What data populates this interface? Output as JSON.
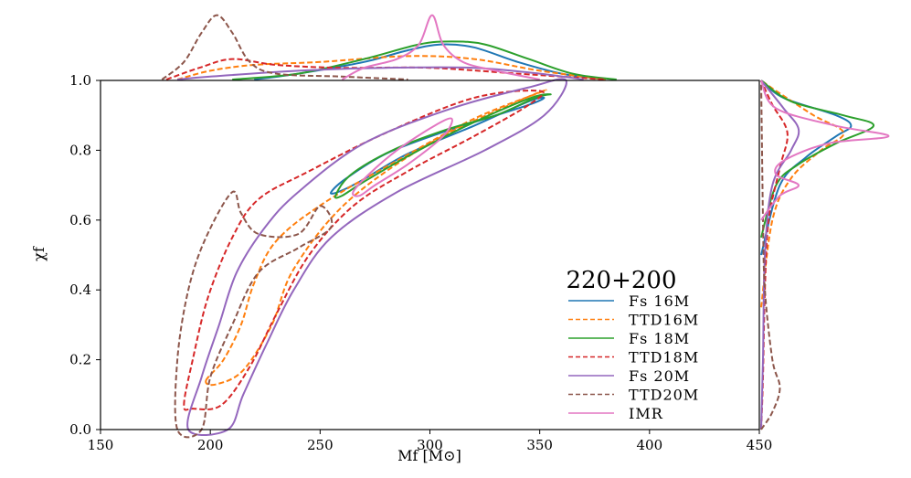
{
  "chart_data": {
    "type": "contour",
    "title": "",
    "xlabel": "M_f [M_⊙]",
    "xlabel_display": "Mf [M⊙]",
    "ylabel": "χ_f",
    "ylabel_display": "χf",
    "xlim": [
      150,
      450
    ],
    "ylim": [
      0.0,
      1.0
    ],
    "xticks": [
      "150",
      "200",
      "250",
      "300",
      "350",
      "400",
      "450"
    ],
    "yticks": [
      "0.0",
      "0.2",
      "0.4",
      "0.6",
      "0.8",
      "1.0"
    ],
    "grid": false,
    "legend": {
      "title": "220+200",
      "placement": "lower-right",
      "entries": [
        {
          "name": "Fs 16M",
          "color": "#1f77b4",
          "dashed": false
        },
        {
          "name": "TTD16M",
          "color": "#ff7f0e",
          "dashed": true
        },
        {
          "name": "Fs 18M",
          "color": "#2ca02c",
          "dashed": false
        },
        {
          "name": "TTD18M",
          "color": "#d62728",
          "dashed": true
        },
        {
          "name": "Fs 20M",
          "color": "#9467bd",
          "dashed": false
        },
        {
          "name": "TTD20M",
          "color": "#8c564b",
          "dashed": true
        },
        {
          "name": "IMR",
          "color": "#e377c2",
          "dashed": false
        }
      ]
    },
    "series": [
      {
        "name": "Fs 16M",
        "color": "#1f77b4",
        "dashed": false,
        "contour": [
          [
            255,
            0.68
          ],
          [
            262,
            0.72
          ],
          [
            280,
            0.79
          ],
          [
            305,
            0.85
          ],
          [
            325,
            0.89
          ],
          [
            345,
            0.93
          ],
          [
            352,
            0.95
          ],
          [
            345,
            0.94
          ],
          [
            320,
            0.87
          ],
          [
            290,
            0.79
          ],
          [
            268,
            0.71
          ],
          [
            258,
            0.68
          ]
        ],
        "marg_x": [
          [
            220,
            0.0
          ],
          [
            240,
            0.01
          ],
          [
            270,
            0.03
          ],
          [
            290,
            0.05
          ],
          [
            305,
            0.06
          ],
          [
            320,
            0.055
          ],
          [
            340,
            0.03
          ],
          [
            360,
            0.01
          ],
          [
            380,
            0.0
          ]
        ],
        "marg_y": [
          [
            0.5,
            0.0
          ],
          [
            0.7,
            0.05
          ],
          [
            0.78,
            0.12
          ],
          [
            0.84,
            0.2
          ],
          [
            0.87,
            0.24
          ],
          [
            0.9,
            0.2
          ],
          [
            0.95,
            0.06
          ],
          [
            1.0,
            0.0
          ]
        ]
      },
      {
        "name": "TTD16M",
        "color": "#ff7f0e",
        "dashed": true,
        "contour": [
          [
            198,
            0.14
          ],
          [
            206,
            0.2
          ],
          [
            214,
            0.3
          ],
          [
            220,
            0.42
          ],
          [
            230,
            0.54
          ],
          [
            252,
            0.65
          ],
          [
            285,
            0.77
          ],
          [
            320,
            0.89
          ],
          [
            352,
            0.97
          ],
          [
            340,
            0.94
          ],
          [
            300,
            0.82
          ],
          [
            262,
            0.65
          ],
          [
            238,
            0.46
          ],
          [
            228,
            0.3
          ],
          [
            215,
            0.17
          ],
          [
            203,
            0.13
          ]
        ],
        "marg_x": [
          [
            185,
            0.0
          ],
          [
            200,
            0.015
          ],
          [
            220,
            0.025
          ],
          [
            250,
            0.03
          ],
          [
            290,
            0.04
          ],
          [
            320,
            0.035
          ],
          [
            350,
            0.015
          ],
          [
            380,
            0.0
          ]
        ],
        "marg_y": [
          [
            0.35,
            0.0
          ],
          [
            0.6,
            0.03
          ],
          [
            0.72,
            0.08
          ],
          [
            0.8,
            0.16
          ],
          [
            0.85,
            0.22
          ],
          [
            0.9,
            0.14
          ],
          [
            0.97,
            0.04
          ],
          [
            1.0,
            0.0
          ]
        ]
      },
      {
        "name": "Fs 18M",
        "color": "#2ca02c",
        "dashed": false,
        "contour": [
          [
            257,
            0.67
          ],
          [
            264,
            0.73
          ],
          [
            283,
            0.8
          ],
          [
            308,
            0.86
          ],
          [
            330,
            0.9
          ],
          [
            348,
            0.95
          ],
          [
            355,
            0.96
          ],
          [
            346,
            0.95
          ],
          [
            320,
            0.88
          ],
          [
            292,
            0.79
          ],
          [
            270,
            0.71
          ],
          [
            260,
            0.67
          ]
        ],
        "marg_x": [
          [
            210,
            0.0
          ],
          [
            240,
            0.01
          ],
          [
            270,
            0.035
          ],
          [
            295,
            0.06
          ],
          [
            310,
            0.065
          ],
          [
            325,
            0.06
          ],
          [
            345,
            0.035
          ],
          [
            365,
            0.01
          ],
          [
            385,
            0.0
          ]
        ],
        "marg_y": [
          [
            0.55,
            0.0
          ],
          [
            0.7,
            0.04
          ],
          [
            0.76,
            0.1
          ],
          [
            0.82,
            0.2
          ],
          [
            0.87,
            0.3
          ],
          [
            0.9,
            0.22
          ],
          [
            0.94,
            0.08
          ],
          [
            1.0,
            0.0
          ]
        ]
      },
      {
        "name": "TTD18M",
        "color": "#d62728",
        "dashed": true,
        "contour": [
          [
            188,
            0.07
          ],
          [
            192,
            0.2
          ],
          [
            199,
            0.38
          ],
          [
            210,
            0.55
          ],
          [
            222,
            0.66
          ],
          [
            245,
            0.74
          ],
          [
            280,
            0.85
          ],
          [
            320,
            0.95
          ],
          [
            350,
            0.97
          ],
          [
            345,
            0.93
          ],
          [
            320,
            0.84
          ],
          [
            290,
            0.74
          ],
          [
            265,
            0.64
          ],
          [
            245,
            0.5
          ],
          [
            230,
            0.33
          ],
          [
            218,
            0.18
          ],
          [
            205,
            0.07
          ],
          [
            192,
            0.06
          ]
        ],
        "marg_x": [
          [
            180,
            0.0
          ],
          [
            195,
            0.02
          ],
          [
            210,
            0.035
          ],
          [
            230,
            0.025
          ],
          [
            260,
            0.02
          ],
          [
            300,
            0.02
          ],
          [
            340,
            0.01
          ],
          [
            380,
            0.0
          ]
        ],
        "marg_y": [
          [
            0.0,
            0.0
          ],
          [
            0.15,
            0.005
          ],
          [
            0.4,
            0.01
          ],
          [
            0.6,
            0.02
          ],
          [
            0.75,
            0.05
          ],
          [
            0.85,
            0.07
          ],
          [
            0.93,
            0.03
          ],
          [
            1.0,
            0.0
          ]
        ]
      },
      {
        "name": "Fs 20M",
        "color": "#9467bd",
        "dashed": false,
        "contour": [
          [
            190,
            0.0
          ],
          [
            196,
            0.15
          ],
          [
            204,
            0.3
          ],
          [
            212,
            0.45
          ],
          [
            225,
            0.58
          ],
          [
            240,
            0.68
          ],
          [
            270,
            0.82
          ],
          [
            310,
            0.92
          ],
          [
            345,
            0.98
          ],
          [
            362,
            1.0
          ],
          [
            352,
            0.9
          ],
          [
            325,
            0.8
          ],
          [
            285,
            0.68
          ],
          [
            255,
            0.55
          ],
          [
            238,
            0.4
          ],
          [
            226,
            0.25
          ],
          [
            215,
            0.1
          ],
          [
            208,
            0.0
          ]
        ],
        "marg_x": [
          [
            185,
            0.0
          ],
          [
            200,
            0.005
          ],
          [
            240,
            0.015
          ],
          [
            280,
            0.02
          ],
          [
            320,
            0.02
          ],
          [
            350,
            0.01
          ],
          [
            370,
            0.0
          ]
        ],
        "marg_y": [
          [
            0.0,
            0.0
          ],
          [
            0.2,
            0.005
          ],
          [
            0.5,
            0.01
          ],
          [
            0.7,
            0.03
          ],
          [
            0.8,
            0.08
          ],
          [
            0.86,
            0.1
          ],
          [
            0.92,
            0.06
          ],
          [
            1.0,
            0.0
          ]
        ]
      },
      {
        "name": "TTD20M",
        "color": "#8c564b",
        "dashed": true,
        "contour": [
          [
            185,
            0.0
          ],
          [
            185,
            0.2
          ],
          [
            190,
            0.4
          ],
          [
            198,
            0.55
          ],
          [
            210,
            0.68
          ],
          [
            214,
            0.62
          ],
          [
            222,
            0.56
          ],
          [
            240,
            0.56
          ],
          [
            250,
            0.64
          ],
          [
            255,
            0.58
          ],
          [
            240,
            0.52
          ],
          [
            222,
            0.45
          ],
          [
            210,
            0.3
          ],
          [
            200,
            0.15
          ],
          [
            196,
            0.0
          ]
        ],
        "marg_x": [
          [
            178,
            0.0
          ],
          [
            188,
            0.03
          ],
          [
            196,
            0.08
          ],
          [
            203,
            0.11
          ],
          [
            210,
            0.08
          ],
          [
            218,
            0.03
          ],
          [
            230,
            0.01
          ],
          [
            260,
            0.005
          ],
          [
            290,
            0.0
          ]
        ],
        "marg_y": [
          [
            0.0,
            0.0
          ],
          [
            0.05,
            0.03
          ],
          [
            0.12,
            0.05
          ],
          [
            0.2,
            0.03
          ],
          [
            0.4,
            0.01
          ],
          [
            0.6,
            0.005
          ],
          [
            1.0,
            0.0
          ]
        ]
      },
      {
        "name": "IMR",
        "color": "#e377c2",
        "dashed": false,
        "contour": [
          [
            265,
            0.68
          ],
          [
            272,
            0.73
          ],
          [
            285,
            0.8
          ],
          [
            302,
            0.87
          ],
          [
            310,
            0.89
          ],
          [
            306,
            0.84
          ],
          [
            290,
            0.76
          ],
          [
            275,
            0.7
          ],
          [
            268,
            0.67
          ]
        ],
        "marg_x": [
          [
            260,
            0.0
          ],
          [
            270,
            0.02
          ],
          [
            285,
            0.035
          ],
          [
            295,
            0.06
          ],
          [
            301,
            0.11
          ],
          [
            306,
            0.06
          ],
          [
            315,
            0.03
          ],
          [
            330,
            0.015
          ],
          [
            350,
            0.0
          ]
        ],
        "marg_y": [
          [
            0.6,
            0.0
          ],
          [
            0.67,
            0.05
          ],
          [
            0.7,
            0.1
          ],
          [
            0.73,
            0.04
          ],
          [
            0.77,
            0.06
          ],
          [
            0.82,
            0.18
          ],
          [
            0.84,
            0.34
          ],
          [
            0.87,
            0.2
          ],
          [
            0.92,
            0.04
          ],
          [
            1.0,
            0.0
          ]
        ]
      }
    ]
  }
}
